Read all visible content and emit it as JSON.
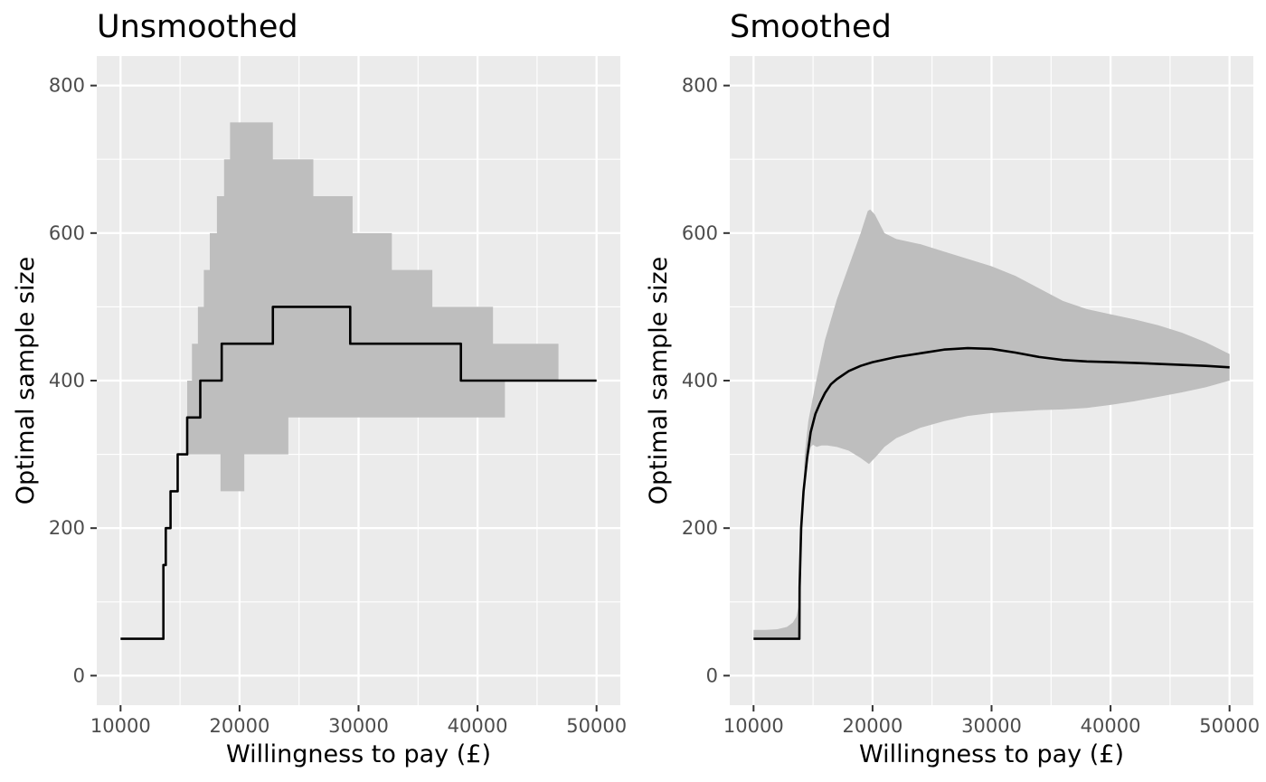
{
  "chart_data": [
    {
      "type": "line",
      "title": "Unsmoothed",
      "xlabel": "Willingness to pay (£)",
      "ylabel": "Optimal sample size",
      "xlim": [
        8000,
        52000
      ],
      "ylim": [
        -40,
        840
      ],
      "xticks": [
        10000,
        20000,
        30000,
        40000,
        50000
      ],
      "yticks": [
        0,
        200,
        400,
        600,
        800
      ],
      "xtick_labels": [
        "10000",
        "20000",
        "30000",
        "40000",
        "50000"
      ],
      "ytick_labels": [
        "0",
        "200",
        "400",
        "600",
        "800"
      ],
      "grid": true,
      "band_color": "#bebebe",
      "line_color": "#000000",
      "panel_background": "#ebebeb",
      "line": {
        "x": [
          10000,
          13600,
          13600,
          13800,
          13800,
          14200,
          14200,
          14800,
          14800,
          15600,
          15600,
          16700,
          16700,
          18500,
          18500,
          22800,
          22800,
          29300,
          29300,
          38600,
          38600,
          50000
        ],
        "y": [
          50,
          50,
          150,
          150,
          200,
          200,
          250,
          250,
          300,
          300,
          350,
          350,
          400,
          400,
          450,
          450,
          500,
          500,
          450,
          450,
          400,
          400
        ]
      },
      "band": {
        "upper": {
          "x": [
            10000,
            13600,
            13600,
            13800,
            13800,
            14200,
            14200,
            14800,
            14800,
            15600,
            15600,
            16000,
            16000,
            16500,
            16500,
            17000,
            17000,
            17500,
            17500,
            18100,
            18100,
            18700,
            18700,
            19200,
            19200,
            22800,
            22800,
            26200,
            26200,
            29500,
            29500,
            32800,
            32800,
            36200,
            36200,
            41300,
            41300,
            46800,
            46800,
            50000
          ],
          "y": [
            50,
            50,
            150,
            150,
            200,
            200,
            250,
            250,
            300,
            300,
            400,
            400,
            450,
            450,
            500,
            500,
            550,
            550,
            600,
            600,
            650,
            650,
            700,
            700,
            750,
            750,
            700,
            700,
            650,
            650,
            600,
            600,
            550,
            550,
            500,
            500,
            450,
            450,
            400,
            400
          ]
        },
        "lower": {
          "x": [
            10000,
            13600,
            13600,
            13800,
            13800,
            14200,
            14200,
            14800,
            14800,
            18400,
            18400,
            20400,
            20400,
            24100,
            24100,
            42300,
            42300,
            50000
          ],
          "y": [
            50,
            50,
            150,
            150,
            200,
            200,
            250,
            250,
            300,
            300,
            250,
            250,
            300,
            300,
            350,
            350,
            400,
            400
          ]
        }
      }
    },
    {
      "type": "line",
      "title": "Smoothed",
      "xlabel": "Willingness to pay (£)",
      "ylabel": "Optimal sample size",
      "xlim": [
        8000,
        52000
      ],
      "ylim": [
        -40,
        840
      ],
      "xticks": [
        10000,
        20000,
        30000,
        40000,
        50000
      ],
      "yticks": [
        0,
        200,
        400,
        600,
        800
      ],
      "xtick_labels": [
        "10000",
        "20000",
        "30000",
        "40000",
        "50000"
      ],
      "ytick_labels": [
        "0",
        "200",
        "400",
        "600",
        "800"
      ],
      "grid": true,
      "band_color": "#bebebe",
      "line_color": "#000000",
      "panel_background": "#ebebeb",
      "line": {
        "x": [
          10000,
          13850,
          13870,
          14000,
          14200,
          14500,
          14800,
          15200,
          15600,
          16000,
          16500,
          17000,
          18000,
          19000,
          20000,
          22000,
          24000,
          26000,
          28000,
          30000,
          32000,
          34000,
          36000,
          38000,
          40000,
          42000,
          45000,
          48000,
          50000
        ],
        "y": [
          50,
          50,
          120,
          200,
          250,
          295,
          330,
          355,
          370,
          383,
          395,
          402,
          413,
          420,
          425,
          432,
          437,
          442,
          444,
          443,
          438,
          432,
          428,
          426,
          425,
          424,
          422,
          420,
          418
        ]
      },
      "band": {
        "upper": {
          "x": [
            10000,
            11000,
            12000,
            12800,
            13300,
            13600,
            13800,
            13950,
            14100,
            14300,
            14600,
            14900,
            15200,
            15600,
            16000,
            17000,
            18000,
            19000,
            19600,
            19800,
            20200,
            21000,
            22000,
            24000,
            26000,
            28000,
            30000,
            32000,
            34000,
            36000,
            38000,
            40000,
            42000,
            44000,
            46000,
            48000,
            50000
          ],
          "y": [
            62,
            62,
            63,
            66,
            72,
            80,
            95,
            130,
            220,
            300,
            345,
            370,
            395,
            425,
            455,
            510,
            555,
            600,
            630,
            632,
            625,
            600,
            592,
            585,
            575,
            565,
            555,
            542,
            525,
            508,
            497,
            490,
            483,
            475,
            465,
            452,
            436
          ]
        },
        "lower": {
          "x": [
            10000,
            13850,
            13870,
            14000,
            14200,
            14500,
            14800,
            15000,
            15300,
            15700,
            16200,
            17000,
            18000,
            19000,
            19700,
            20300,
            21000,
            22000,
            24000,
            26000,
            28000,
            30000,
            32000,
            34000,
            36000,
            38000,
            40000,
            42000,
            44000,
            46000,
            48000,
            50000
          ],
          "y": [
            50,
            50,
            120,
            200,
            250,
            290,
            310,
            313,
            310,
            312,
            312,
            310,
            305,
            295,
            287,
            297,
            310,
            322,
            336,
            345,
            352,
            356,
            358,
            360,
            361,
            363,
            367,
            372,
            378,
            384,
            391,
            400
          ]
        }
      }
    }
  ]
}
